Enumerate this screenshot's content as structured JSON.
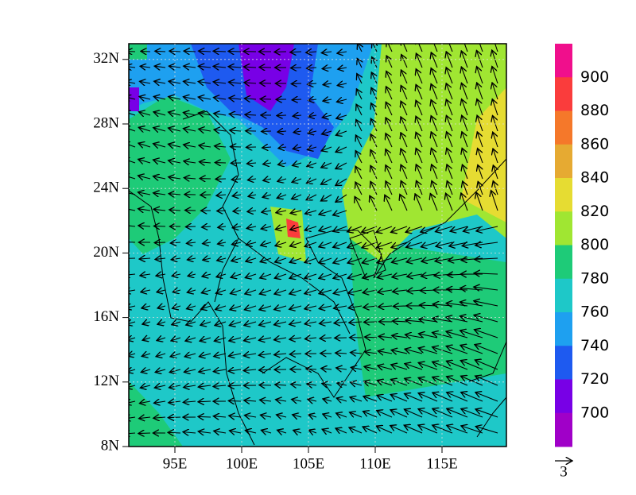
{
  "map": {
    "lat_ticks": [
      "8N",
      "12N",
      "16N",
      "20N",
      "24N",
      "28N",
      "32N"
    ],
    "lon_ticks": [
      "95E",
      "100E",
      "105E",
      "110E",
      "115E"
    ],
    "colorbar": {
      "labels": [
        "900",
        "880",
        "860",
        "840",
        "820",
        "800",
        "780",
        "760",
        "740",
        "720",
        "700"
      ],
      "colors": [
        "#f00f8c",
        "#fa3c3c",
        "#f5782a",
        "#e6aa32",
        "#e6dc32",
        "#a0e632",
        "#1ecb78",
        "#1ec8c8",
        "#1ea0f0",
        "#1e5af0",
        "#7800e6",
        "#a000c8"
      ]
    },
    "reference_vector": "3"
  }
}
